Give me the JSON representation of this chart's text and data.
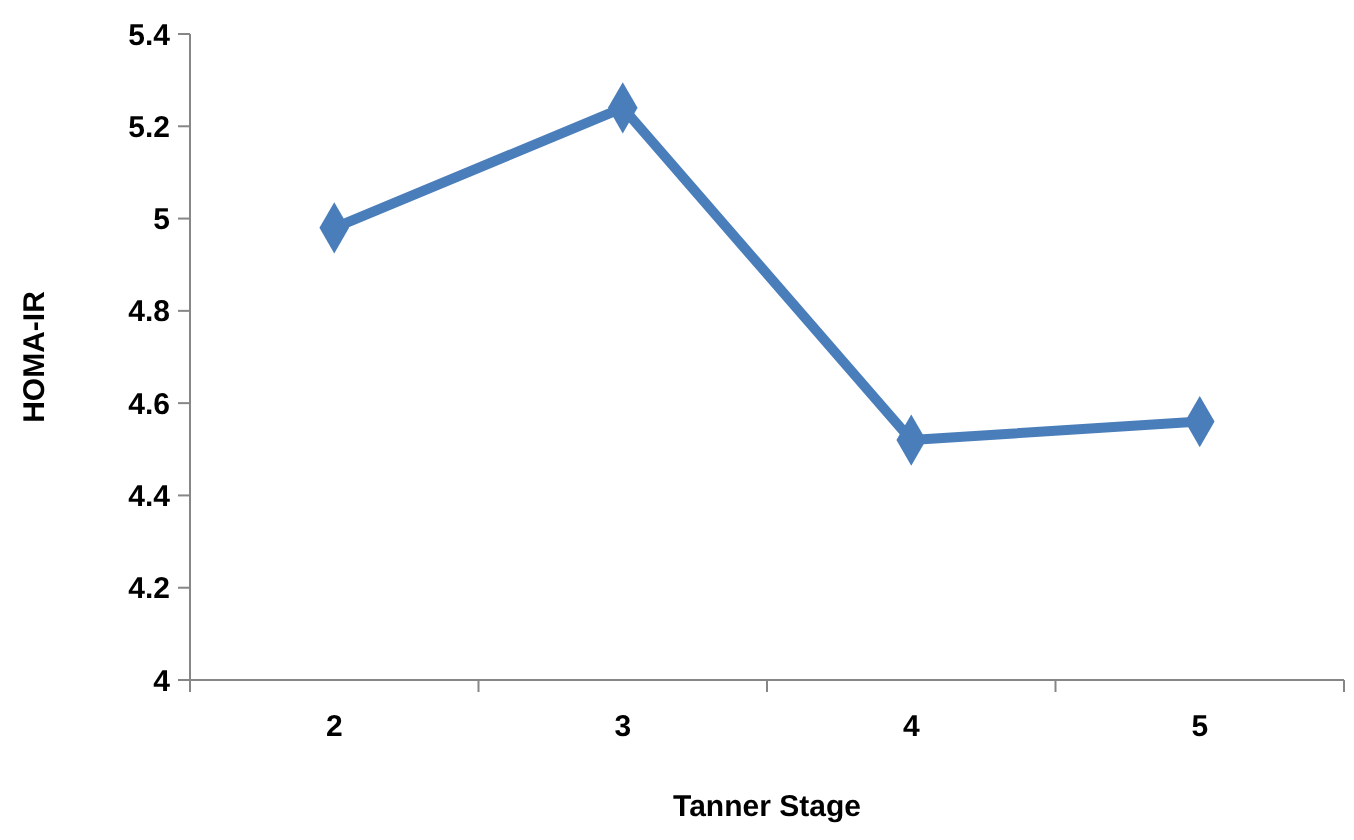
{
  "chart_data": {
    "type": "line",
    "xlabel": "Tanner Stage",
    "ylabel": "HOMA-IR",
    "categories": [
      "2",
      "3",
      "4",
      "5"
    ],
    "series": [
      {
        "color": "#4a7ebb",
        "values": [
          4.98,
          5.24,
          4.52,
          4.56
        ]
      }
    ],
    "ylim": [
      4,
      5.4
    ],
    "yticks": [
      4,
      4.2,
      4.4,
      4.6,
      4.8,
      5,
      5.2,
      5.4
    ],
    "marker": "diamond",
    "grid": false
  }
}
